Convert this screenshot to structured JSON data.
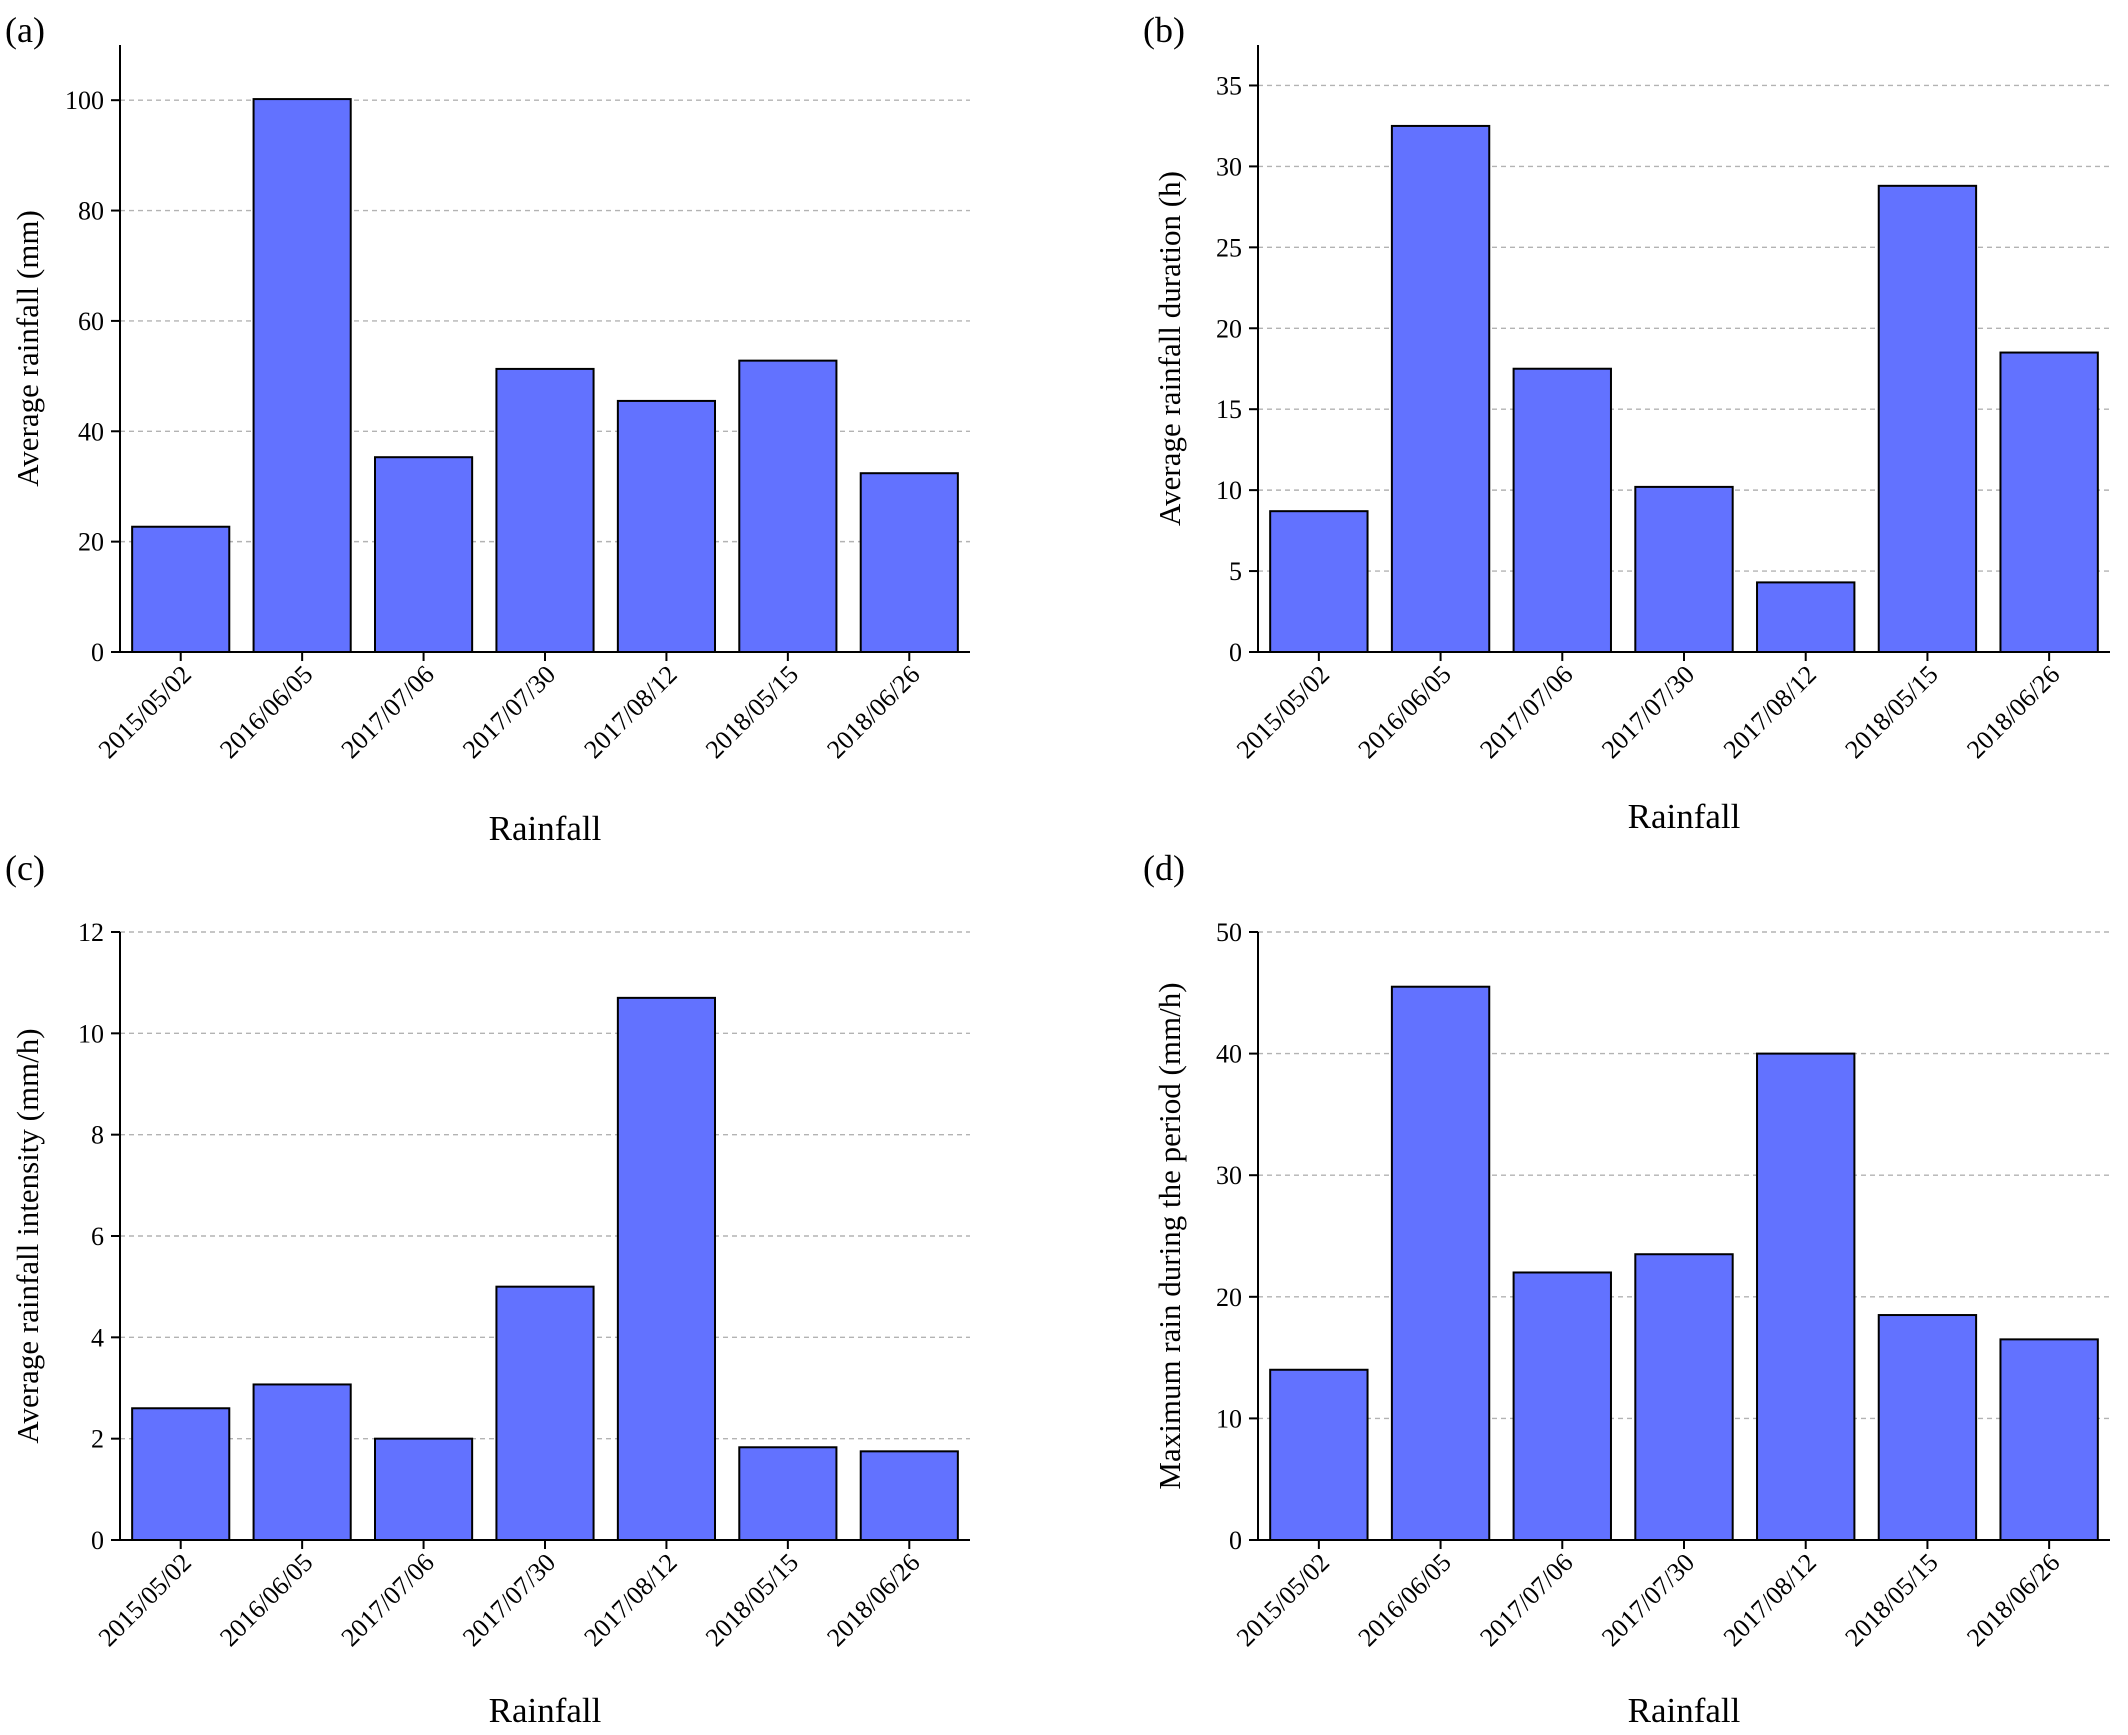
{
  "figure": {
    "bar_color": "#6272ff",
    "bar_edge_color": "#000000",
    "grid_color": "#b3b3b3"
  },
  "chart_data": [
    {
      "panel_label": "(a)",
      "type": "bar",
      "categories": [
        "2015/05/02",
        "2016/06/05",
        "2017/07/06",
        "2017/07/30",
        "2017/08/12",
        "2018/05/15",
        "2018/06/26"
      ],
      "values": [
        22.7,
        100.2,
        35.3,
        51.3,
        45.5,
        52.8,
        32.4
      ],
      "xlabel": "Rainfall",
      "ylabel": "Average rainfall (mm)",
      "ylim": [
        0,
        110
      ],
      "yticks": [
        0,
        20,
        40,
        60,
        80,
        100
      ],
      "grid": "horizontal dashed",
      "legend": "none"
    },
    {
      "panel_label": "(b)",
      "type": "bar",
      "categories": [
        "2015/05/02",
        "2016/06/05",
        "2017/07/06",
        "2017/07/30",
        "2017/08/12",
        "2018/05/15",
        "2018/06/26"
      ],
      "values": [
        8.7,
        32.5,
        17.5,
        10.2,
        4.3,
        28.8,
        18.5
      ],
      "xlabel": "Rainfall",
      "ylabel": "Average rainfall duration (h)",
      "ylim": [
        0,
        37.5
      ],
      "yticks": [
        0,
        5,
        10,
        15,
        20,
        25,
        30,
        35
      ],
      "grid": "horizontal dashed",
      "legend": "none"
    },
    {
      "panel_label": "(c)",
      "type": "bar",
      "categories": [
        "2015/05/02",
        "2016/06/05",
        "2017/07/06",
        "2017/07/30",
        "2017/08/12",
        "2018/05/15",
        "2018/06/26"
      ],
      "values": [
        2.6,
        3.07,
        2.0,
        5.0,
        10.7,
        1.83,
        1.75
      ],
      "xlabel": "Rainfall",
      "ylabel": "Average rainfall intensity (mm/h)",
      "ylim": [
        0,
        12
      ],
      "yticks": [
        0,
        2,
        4,
        6,
        8,
        10,
        12
      ],
      "grid": "horizontal dashed",
      "legend": "none"
    },
    {
      "panel_label": "(d)",
      "type": "bar",
      "categories": [
        "2015/05/02",
        "2016/06/05",
        "2017/07/06",
        "2017/07/30",
        "2017/08/12",
        "2018/05/15",
        "2018/06/26"
      ],
      "values": [
        14.0,
        45.5,
        22.0,
        23.5,
        40.0,
        18.5,
        16.5
      ],
      "xlabel": "Rainfall",
      "ylabel": "Maximum rain during the period (mm/h)",
      "ylim": [
        0,
        50
      ],
      "yticks": [
        0,
        10,
        20,
        30,
        40,
        50
      ],
      "grid": "horizontal dashed",
      "legend": "none"
    }
  ]
}
